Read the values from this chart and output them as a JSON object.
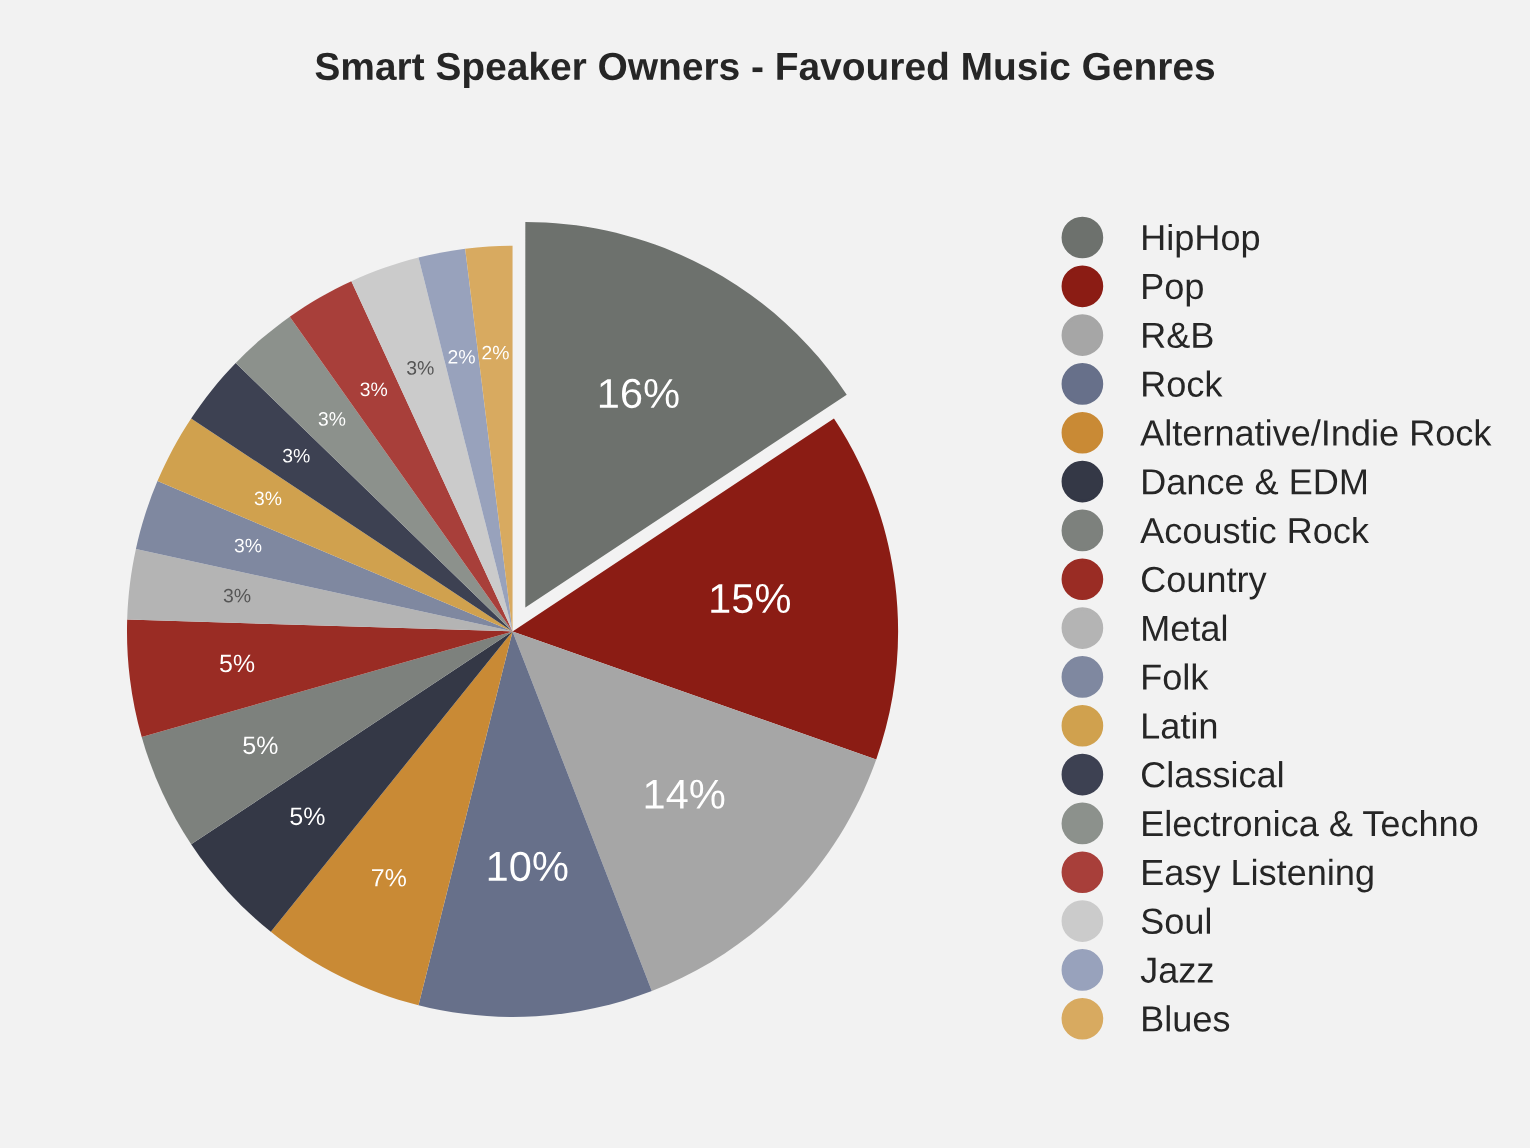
{
  "chart_data": {
    "type": "pie",
    "title": "Smart Speaker Owners - Favoured Music Genres",
    "categories": [
      "HipHop",
      "Pop",
      "R&B",
      "Rock",
      "Alternative/Indie Rock",
      "Dance & EDM",
      "Acoustic Rock",
      "Country",
      "Metal",
      "Folk",
      "Latin",
      "Classical",
      "Electronica & Techno",
      "Easy Listening",
      "Soul",
      "Jazz",
      "Blues"
    ],
    "values": [
      16,
      15,
      14,
      10,
      7,
      5,
      5,
      5,
      3,
      3,
      3,
      3,
      3,
      3,
      3,
      2,
      2
    ],
    "colors": [
      "#6d716d",
      "#8b1c14",
      "#a6a6a6",
      "#67708a",
      "#c98a35",
      "#343846",
      "#7d817d",
      "#9a2c24",
      "#b4b4b4",
      "#7f88a0",
      "#d0a14e",
      "#3d4152",
      "#8c918c",
      "#a83f3a",
      "#cbcbcb",
      "#98a2bc",
      "#d8aa60"
    ],
    "value_labels": [
      "16%",
      "15%",
      "14%",
      "10%",
      "7%",
      "5%",
      "5%",
      "5%",
      "3%",
      "3%",
      "3%",
      "3%",
      "3%",
      "3%",
      "3%",
      "2%",
      "2%"
    ],
    "legend": "right"
  }
}
